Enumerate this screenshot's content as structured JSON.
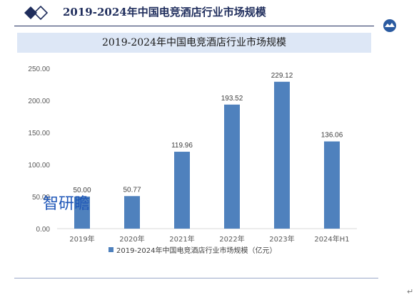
{
  "page_title": "2019-2024年中国电竞酒店行业市场规模",
  "watermark": "智研瞻",
  "return_mark": "↵",
  "colors": {
    "bar": "#4f81bd",
    "banner": "#dde7f6",
    "title": "#1f2d5c"
  },
  "icons": {
    "logo": "diamond-logo-icon",
    "emblem": "circular-emblem-icon"
  },
  "chart_data": {
    "type": "bar",
    "title": "2019-2024年中国电竞酒店行业市场规模",
    "categories": [
      "2019年",
      "2020年",
      "2021年",
      "2022年",
      "2023年",
      "2024年H1"
    ],
    "series": [
      {
        "name": "2019-2024年中国电竞酒店行业市场规模（亿元）",
        "values": [
          50.0,
          50.77,
          119.96,
          193.52,
          229.12,
          136.06
        ],
        "labels": [
          "50.00",
          "50.77",
          "119.96",
          "193.52",
          "229.12",
          "136.06"
        ]
      }
    ],
    "y_ticks": [
      "0.00",
      "50.00",
      "100.00",
      "150.00",
      "200.00",
      "250.00"
    ],
    "ylim": [
      0,
      250
    ],
    "legend_position": "bottom",
    "grid": false
  }
}
